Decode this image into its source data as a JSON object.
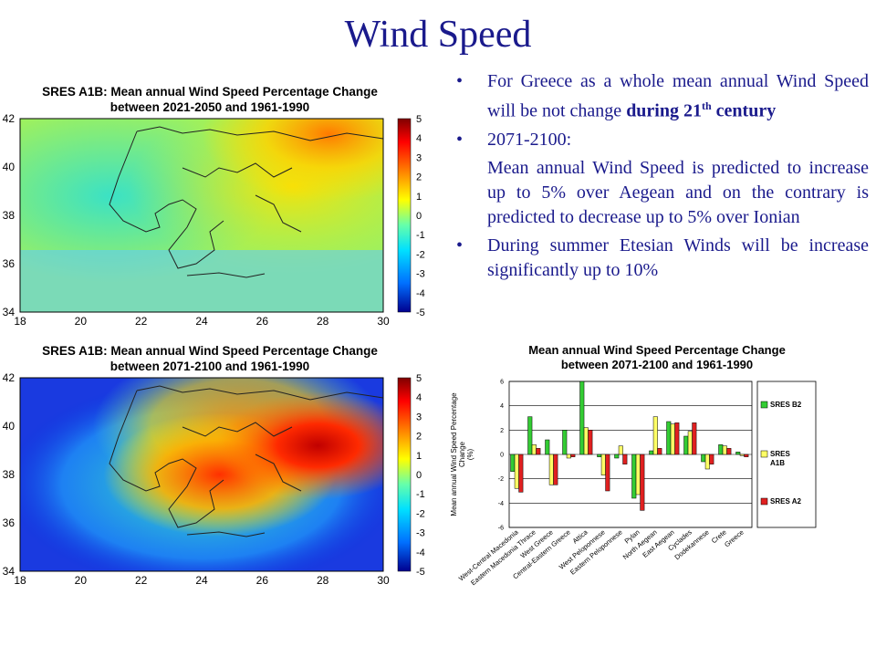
{
  "slide": {
    "title": "Wind Speed"
  },
  "maps": [
    {
      "title_line1": "SRES A1B: Mean annual Wind Speed Percentage Change",
      "title_line2": "between 2021-2050 and 1961-1990"
    },
    {
      "title_line1": "SRES A1B: Mean annual Wind Speed Percentage Change",
      "title_line2": "between 2071-2100 and 1961-1990"
    }
  ],
  "map_axes": {
    "lon_ticks": [
      "18",
      "20",
      "22",
      "24",
      "26",
      "28",
      "30"
    ],
    "lat_ticks": [
      "42",
      "40",
      "38",
      "36",
      "34"
    ],
    "colorbar_ticks": [
      "5",
      "4",
      "3",
      "2",
      "1",
      "0",
      "-1",
      "-2",
      "-3",
      "-4",
      "-5"
    ]
  },
  "bullets": {
    "b1_text": "For Greece as a whole mean annual Wind Speed will be not change ",
    "b1_bold": "during 21",
    "b1_sup": "th",
    "b1_bold2": "century",
    "b2_text": "2071-2100:",
    "b2_detail": "Mean annual Wind Speed is predicted to increase up to 5% over Aegean and on the contrary is predicted to decrease up to 5% over Ionian",
    "b3_text": "During summer Etesian Winds will be increase significantly up to 10%",
    "bullet_glyph": "•"
  },
  "colors": {
    "title_blue": "#1a1a8c",
    "b2": "#33cc33",
    "a1b": "#ffff66",
    "a2": "#e02020"
  },
  "chart_data": {
    "type": "bar",
    "title": "Mean annual Wind Speed Percentage Change\nbetween 2071-2100 and 1961-1990",
    "ylabel": "Mean annual Wind Speed Percentage  Change  (%)",
    "ylim": [
      -6,
      6
    ],
    "yticks": [
      "6",
      "4",
      "2",
      "0",
      "-2",
      "-4",
      "-6"
    ],
    "categories": [
      "West-Central Macedonia",
      "Eastern Macedonia Thrace",
      "West Greece",
      "Central-Eastern Greece",
      "Attica",
      "West Peloponnese",
      "Eastern Peloponnese",
      "Pylan",
      "North Aegean",
      "East Aegean",
      "Cyclades",
      "Dodekannese",
      "Crete",
      "Greece"
    ],
    "series": [
      {
        "name": "SRES B2",
        "values": [
          -1.4,
          3.1,
          1.2,
          2.0,
          6.0,
          -0.2,
          -0.3,
          -3.6,
          0.3,
          2.7,
          1.5,
          -0.6,
          0.8,
          0.2
        ]
      },
      {
        "name": "SRES A1B",
        "values": [
          -2.8,
          0.8,
          -2.5,
          -0.3,
          2.2,
          -1.7,
          0.7,
          -3.3,
          3.1,
          2.5,
          1.9,
          -1.2,
          0.7,
          -0.1
        ]
      },
      {
        "name": "SRES A2",
        "values": [
          -3.1,
          0.5,
          -2.5,
          -0.2,
          2.0,
          -3.0,
          -0.8,
          -4.6,
          0.5,
          2.6,
          2.6,
          -0.8,
          0.5,
          -0.2
        ]
      }
    ],
    "legend_labels": [
      "SRES B2",
      "SRES\nA1B",
      "SRES A2"
    ],
    "legend_position": "right",
    "grid": true
  }
}
